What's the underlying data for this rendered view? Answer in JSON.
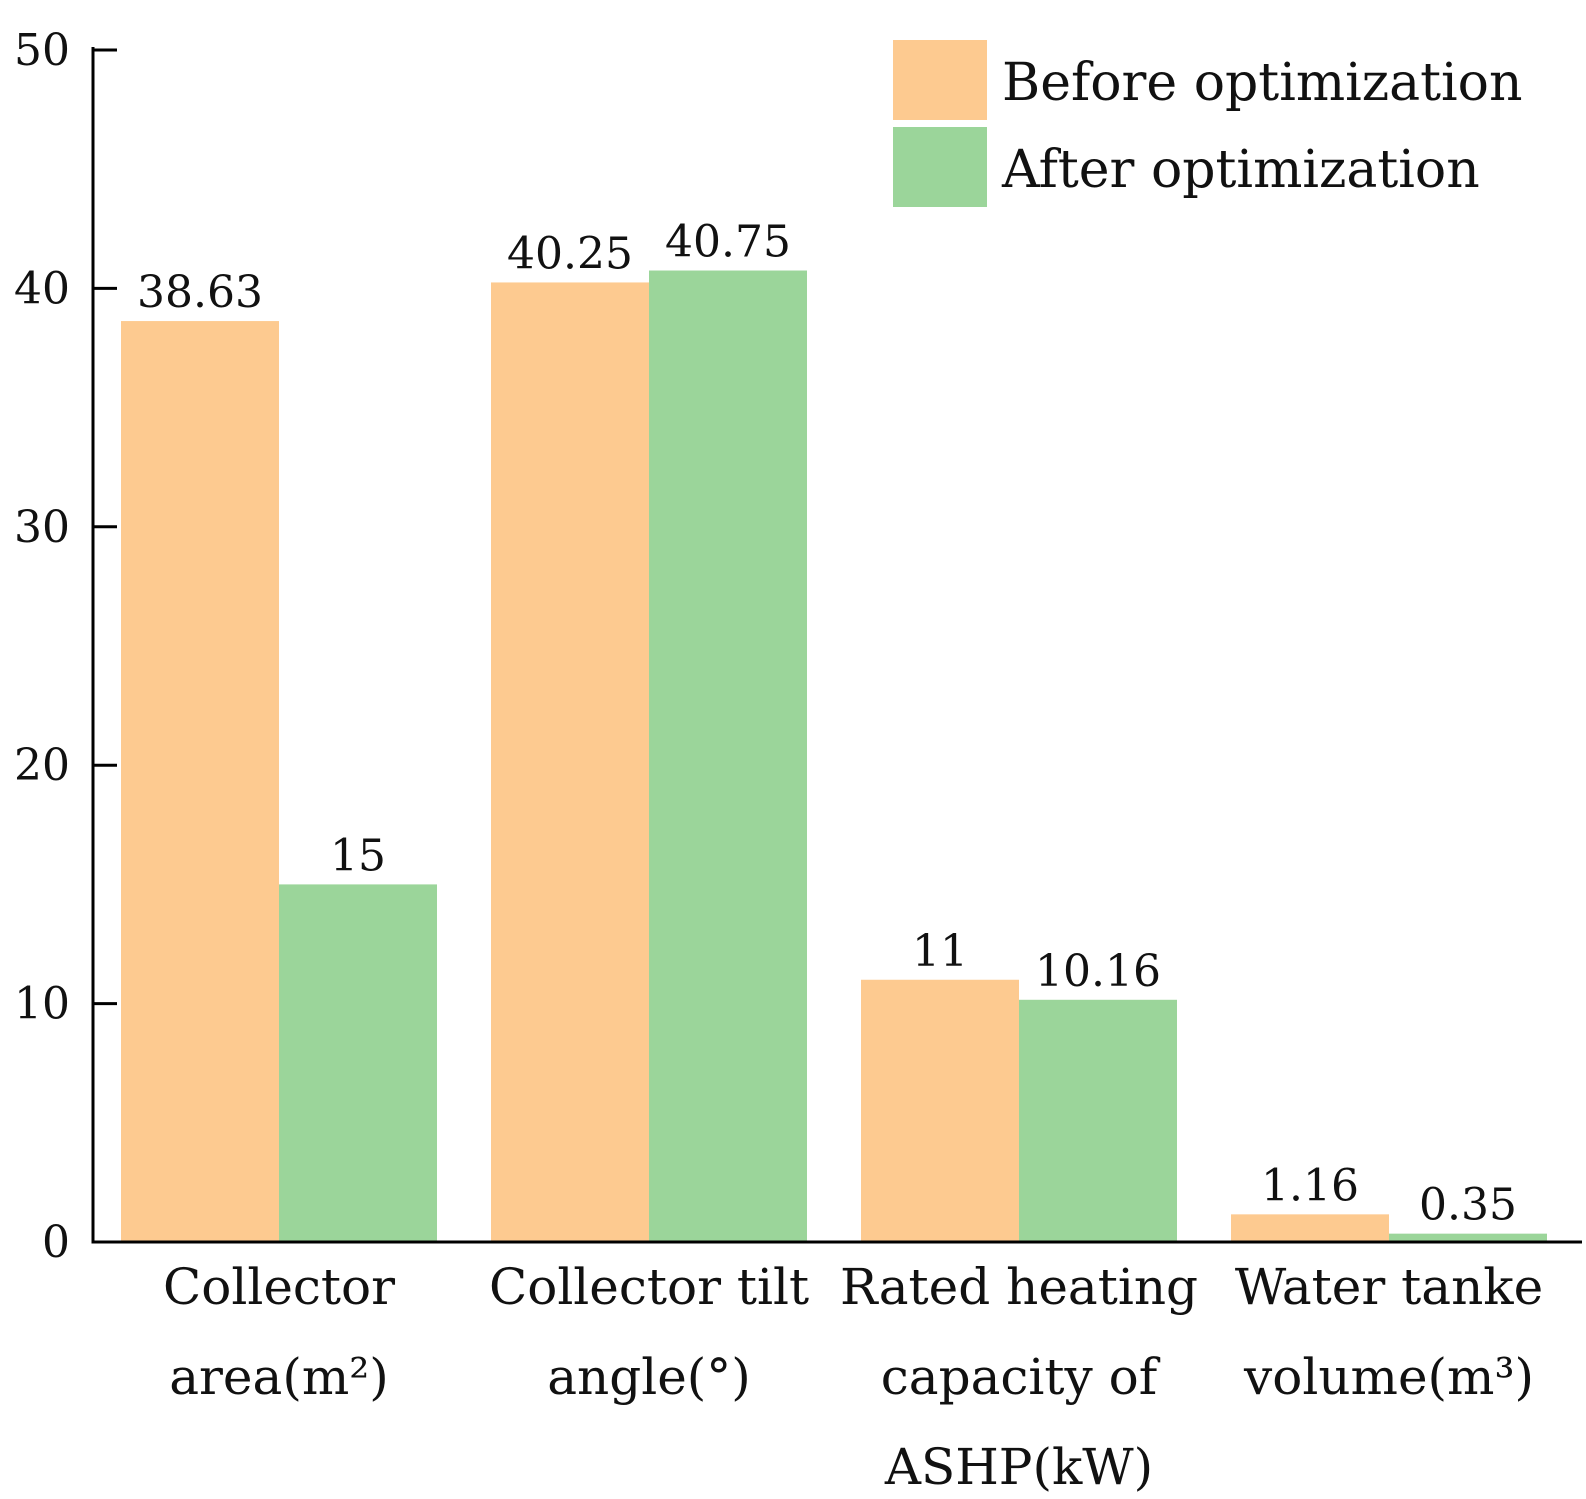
{
  "chart_data": {
    "type": "bar",
    "title": "",
    "xlabel": "",
    "ylabel": "",
    "ylim": [
      0,
      50
    ],
    "yticks": [
      "0",
      "10",
      "20",
      "30",
      "40",
      "50"
    ],
    "grid": false,
    "legend_position": "top-right",
    "categories": [
      [
        "Collector",
        "area(m²)"
      ],
      [
        "Collector tilt",
        "angle(°)"
      ],
      [
        "Rated heating",
        "capacity of",
        "ASHP(kW)"
      ],
      [
        "Water tanke",
        "volume(m³)"
      ]
    ],
    "series": [
      {
        "name": "Before optimization",
        "color": "#FDCA90",
        "values": [
          38.63,
          40.25,
          11,
          1.16
        ],
        "labels": [
          "38.63",
          "40.25",
          "11",
          "1.16"
        ]
      },
      {
        "name": "After optimization",
        "color": "#9BD59A",
        "values": [
          15,
          40.75,
          10.16,
          0.35
        ],
        "labels": [
          "15",
          "40.75",
          "10.16",
          "0.35"
        ]
      }
    ]
  }
}
